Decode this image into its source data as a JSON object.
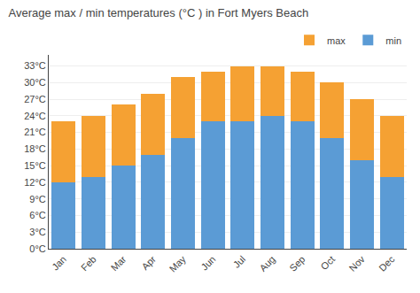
{
  "chart_data": {
    "type": "bar",
    "stacked": true,
    "title": "Average max / min temperatures (°C ) in Fort Myers Beach",
    "categories": [
      "Jan",
      "Feb",
      "Mar",
      "Apr",
      "May",
      "Jun",
      "Jul",
      "Aug",
      "Sep",
      "Oct",
      "Nov",
      "Dec"
    ],
    "series": [
      {
        "name": "min",
        "color": "#5b9bd5",
        "values": [
          12,
          13,
          15,
          17,
          20,
          23,
          23,
          24,
          23,
          20,
          16,
          13
        ]
      },
      {
        "name": "max",
        "color": "#f5a133",
        "values": [
          11,
          11,
          11,
          11,
          11,
          9,
          10,
          9,
          9,
          10,
          11,
          11
        ]
      }
    ],
    "ylim": [
      0,
      35
    ],
    "yticks": [
      {
        "value": 0,
        "label": "0°C"
      },
      {
        "value": 3,
        "label": "3°C"
      },
      {
        "value": 6,
        "label": "6°C"
      },
      {
        "value": 9,
        "label": "9°C"
      },
      {
        "value": 12,
        "label": "12°C"
      },
      {
        "value": 15,
        "label": "15°C"
      },
      {
        "value": 18,
        "label": "18°C"
      },
      {
        "value": 21,
        "label": "21°C"
      },
      {
        "value": 24,
        "label": "24°C"
      },
      {
        "value": 27,
        "label": "27°C"
      },
      {
        "value": 30,
        "label": "30°C"
      },
      {
        "value": 33,
        "label": "33°C"
      }
    ],
    "grid": true,
    "legend": "top right"
  }
}
